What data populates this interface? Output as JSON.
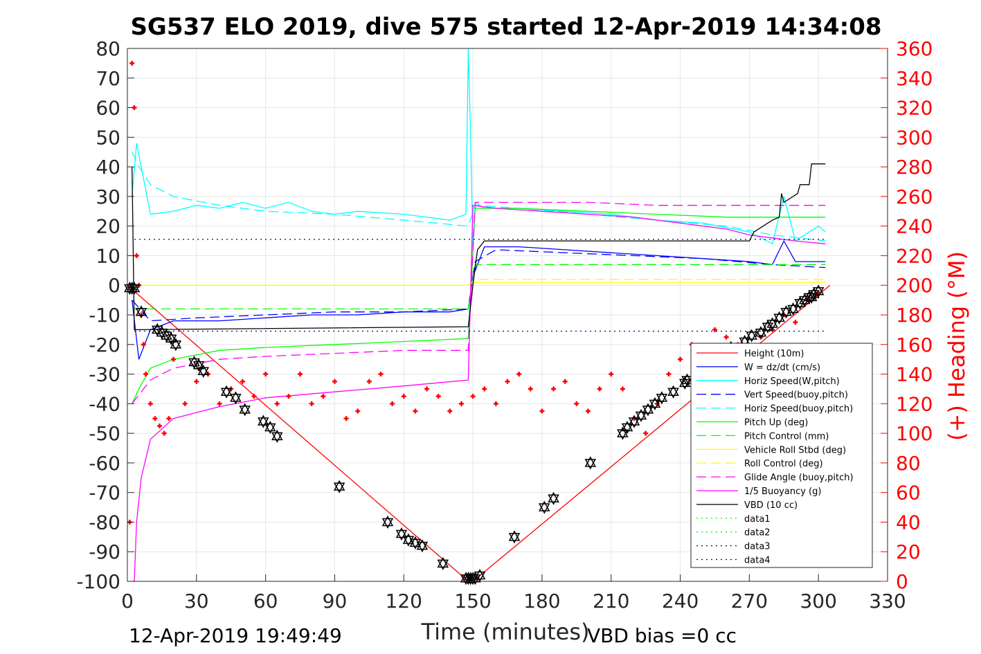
{
  "chart_data": {
    "type": "line",
    "title": "SG537 ELO 2019, dive 575 started 12-Apr-2019 14:34:08",
    "xlabel": "Time (minutes)",
    "ylabel": "",
    "ylabel_right": "(+) Heading (°M)",
    "xlim": [
      0,
      330
    ],
    "ylim": [
      -100,
      80
    ],
    "ylim_right": [
      0,
      360
    ],
    "xticks": [
      "0",
      "30",
      "60",
      "90",
      "120",
      "150",
      "180",
      "210",
      "240",
      "270",
      "300",
      "330"
    ],
    "yticks": [
      "80",
      "70",
      "60",
      "50",
      "40",
      "30",
      "20",
      "10",
      "0",
      "-10",
      "-20",
      "-30",
      "-40",
      "-50",
      "-60",
      "-70",
      "-80",
      "-90",
      "-100"
    ],
    "yticks_right": [
      "360",
      "340",
      "320",
      "300",
      "280",
      "260",
      "240",
      "220",
      "200",
      "180",
      "160",
      "140",
      "120",
      "100",
      "80",
      "60",
      "40",
      "20",
      "0"
    ],
    "grid": true,
    "legend_position": "right",
    "footer_left": "12-Apr-2019 19:49:49",
    "footer_right": "VBD bias =0 cc",
    "colors": {
      "height": "#ff0000",
      "w": "#0000ff",
      "horiz_w": "#00ffff",
      "vert_buoy": "#0000ff",
      "horiz_buoy": "#00ffff",
      "pitch": "#00ff00",
      "pitch_ctrl": "#00ff00",
      "roll": "#ffff00",
      "roll_ctrl": "#ffff00",
      "glide": "#ff00ff",
      "buoyancy": "#ff00ff",
      "vbd": "#000000",
      "heading": "#ff0000",
      "grid": "#e6e6e6"
    },
    "series": [
      {
        "name": "Height (10m)",
        "style": "solid",
        "x": [
          0,
          148,
          150,
          305
        ],
        "y": [
          0,
          -100,
          -100,
          0
        ]
      },
      {
        "name": "W = dz/dt (cm/s)",
        "style": "solid",
        "x": [
          2,
          5,
          10,
          20,
          40,
          60,
          80,
          100,
          120,
          140,
          148,
          150,
          155,
          170,
          190,
          210,
          230,
          250,
          270,
          280,
          285,
          290,
          300,
          303
        ],
        "y": [
          -5,
          -25,
          -15,
          -12,
          -12,
          -11,
          -10,
          -10,
          -9,
          -9,
          -8,
          3,
          13,
          13,
          12,
          11,
          10,
          9,
          8,
          7,
          15,
          8,
          8,
          8
        ]
      },
      {
        "name": "Horiz Speed(W,pitch)",
        "style": "solid",
        "x": [
          2,
          4,
          6,
          10,
          20,
          30,
          40,
          50,
          60,
          70,
          80,
          90,
          100,
          120,
          140,
          147,
          148,
          149,
          150,
          151,
          155,
          170,
          190,
          210,
          230,
          250,
          270,
          280,
          285,
          290,
          300,
          303
        ],
        "y": [
          30,
          48,
          40,
          24,
          25,
          27,
          26,
          28,
          26,
          28,
          25,
          24,
          25,
          24,
          22,
          24,
          80,
          50,
          12,
          28,
          26,
          26,
          25,
          24,
          22,
          21,
          18,
          14,
          30,
          15,
          20,
          18
        ]
      },
      {
        "name": "Vert Speed(buoy,pitch)",
        "style": "dashed",
        "x": [
          2,
          10,
          30,
          60,
          90,
          120,
          148,
          151,
          160,
          190,
          220,
          250,
          280,
          303
        ],
        "y": [
          -5,
          -12,
          -11,
          -10,
          -9,
          -9,
          -8,
          8,
          12,
          11,
          10,
          9,
          7,
          6
        ]
      },
      {
        "name": "Horiz Speed(buoy,pitch)",
        "style": "dashed",
        "x": [
          2,
          5,
          10,
          20,
          40,
          60,
          90,
          120,
          148,
          151,
          170,
          200,
          230,
          260,
          280,
          303
        ],
        "y": [
          45,
          40,
          34,
          30,
          27,
          25,
          24,
          22,
          20,
          27,
          26,
          24,
          22,
          20,
          17,
          15
        ]
      },
      {
        "name": "Pitch Up (deg)",
        "style": "solid",
        "x": [
          2,
          5,
          10,
          20,
          40,
          60,
          90,
          120,
          148,
          151,
          170,
          200,
          230,
          260,
          290,
          303
        ],
        "y": [
          -40,
          -35,
          -28,
          -25,
          -22,
          -21,
          -20,
          -19,
          -18,
          26,
          26,
          25,
          24,
          23,
          23,
          23
        ]
      },
      {
        "name": "Pitch Control (mm)",
        "style": "dashed",
        "x": [
          2,
          10,
          148,
          151,
          303
        ],
        "y": [
          -8,
          -8,
          -8,
          7,
          7
        ]
      },
      {
        "name": "Vehicle Roll Stbd (deg)",
        "style": "solid",
        "x": [
          2,
          10,
          50,
          100,
          148,
          151,
          200,
          250,
          303
        ],
        "y": [
          0,
          0,
          0,
          0,
          0,
          1,
          1,
          1,
          1
        ]
      },
      {
        "name": "Roll Control (deg)",
        "style": "dashed",
        "x": [
          2,
          148,
          151,
          303
        ],
        "y": [
          0,
          0,
          2,
          2
        ]
      },
      {
        "name": "Glide Angle (buoy,pitch)",
        "style": "dashed",
        "x": [
          2,
          10,
          20,
          40,
          60,
          90,
          120,
          148,
          151,
          170,
          200,
          230,
          260,
          290,
          303
        ],
        "y": [
          -40,
          -32,
          -28,
          -25,
          -24,
          -23,
          -22,
          -22,
          28,
          28,
          28,
          27,
          27,
          27,
          27
        ]
      },
      {
        "name": "1/5 Buoyancy (g)",
        "style": "solid",
        "x": [
          2,
          3,
          4,
          6,
          10,
          20,
          40,
          60,
          90,
          120,
          148,
          150,
          160,
          180,
          200,
          220,
          240,
          260,
          270,
          280,
          290,
          303
        ],
        "y": [
          -100,
          -100,
          -80,
          -65,
          -52,
          -45,
          -41,
          -38,
          -36,
          -34,
          -32,
          27,
          26,
          25,
          24,
          23,
          21,
          19,
          17,
          16,
          15,
          14
        ]
      },
      {
        "name": "VBD (10 cc)",
        "style": "solid",
        "x": [
          2,
          3,
          4,
          148,
          150,
          152,
          155,
          265,
          266,
          270,
          272,
          276,
          280,
          283,
          284,
          285,
          291,
          292,
          296,
          297,
          303
        ],
        "y": [
          40,
          -15,
          -15,
          -14,
          0,
          12,
          15,
          15,
          15,
          15,
          18,
          20,
          22,
          23,
          31,
          28,
          31,
          34,
          34,
          41,
          41
        ]
      },
      {
        "name": "data1",
        "style": "dotted",
        "x": [],
        "y": []
      },
      {
        "name": "data2",
        "style": "dotted",
        "x": [],
        "y": []
      },
      {
        "name": "data3",
        "style": "dotted",
        "x": [
          3,
          303
        ],
        "y": [
          15.5,
          15.5
        ]
      },
      {
        "name": "data4",
        "style": "dotted",
        "x": [
          3,
          303
        ],
        "y": [
          -15.5,
          -15.5
        ]
      }
    ],
    "heading_series": {
      "axis": "right",
      "x": [
        1,
        2,
        3,
        4,
        5,
        6,
        7,
        8,
        10,
        12,
        14,
        16,
        18,
        20,
        25,
        30,
        35,
        40,
        45,
        50,
        55,
        60,
        65,
        70,
        75,
        80,
        85,
        90,
        95,
        100,
        105,
        110,
        115,
        120,
        125,
        130,
        135,
        140,
        145,
        150,
        155,
        160,
        165,
        170,
        175,
        180,
        185,
        190,
        195,
        200,
        205,
        210,
        215,
        220,
        225,
        230,
        235,
        240,
        245,
        250,
        255,
        260,
        265,
        270,
        275,
        280,
        285,
        290,
        295,
        300
      ],
      "y": [
        40,
        350,
        320,
        220,
        200,
        180,
        160,
        140,
        120,
        110,
        105,
        100,
        110,
        150,
        120,
        135,
        140,
        120,
        130,
        135,
        125,
        140,
        120,
        125,
        140,
        120,
        125,
        135,
        110,
        115,
        135,
        140,
        120,
        125,
        115,
        130,
        125,
        115,
        120,
        125,
        130,
        120,
        135,
        140,
        130,
        115,
        130,
        135,
        120,
        115,
        130,
        140,
        130,
        110,
        100,
        120,
        140,
        150,
        160,
        155,
        170,
        165,
        160,
        150,
        165,
        170,
        180,
        175,
        190,
        195
      ]
    },
    "vbd_markers": {
      "x": [
        1,
        2,
        3,
        6,
        13,
        15,
        17,
        19,
        21,
        29,
        31,
        33,
        43,
        47,
        51,
        59,
        62,
        65,
        92,
        113,
        119,
        122,
        125,
        128,
        137,
        147,
        148,
        149,
        150,
        151,
        153,
        168,
        181,
        185,
        201,
        215,
        217,
        220,
        223,
        226,
        229,
        232,
        237,
        242,
        243,
        253,
        262,
        268,
        271,
        275,
        278,
        280,
        283,
        286,
        289,
        292,
        294,
        296,
        297,
        298,
        300
      ],
      "y": [
        -1,
        -1,
        -1,
        -9,
        -15,
        -16,
        -17,
        -18,
        -20,
        -26,
        -27,
        -29,
        -36,
        -38,
        -42,
        -46,
        -48,
        -51,
        -68,
        -80,
        -84,
        -86,
        -87,
        -88,
        -94,
        -99,
        -99,
        -99,
        -99,
        -99,
        -98,
        -85,
        -75,
        -72,
        -60,
        -50,
        -48,
        -46,
        -44,
        -42,
        -40,
        -38,
        -36,
        -33,
        -32,
        -26,
        -21,
        -19,
        -17,
        -16,
        -14,
        -13,
        -11,
        -9,
        -8,
        -6,
        -5,
        -4,
        -4,
        -3,
        -2
      ]
    }
  }
}
